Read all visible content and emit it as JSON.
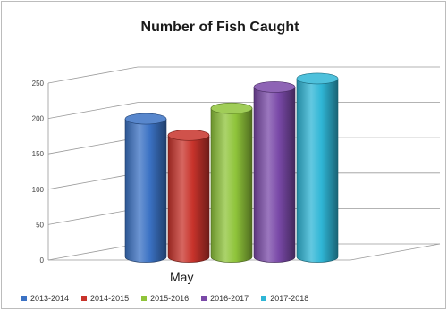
{
  "chart_data": {
    "type": "bar",
    "title": "Number of Fish Caught",
    "xlabel": "",
    "ylabel": "",
    "categories": [
      "May"
    ],
    "ylim": [
      0,
      250
    ],
    "yticks": [
      0,
      50,
      100,
      150,
      200,
      250
    ],
    "grid": true,
    "legend_position": "bottom",
    "series": [
      {
        "name": "2013-2014",
        "values": [
          195
        ],
        "color": "#3b72c4"
      },
      {
        "name": "2014-2015",
        "values": [
          172
        ],
        "color": "#c8332b"
      },
      {
        "name": "2015-2016",
        "values": [
          210
        ],
        "color": "#8fc43a"
      },
      {
        "name": "2016-2017",
        "values": [
          240
        ],
        "color": "#7a49a8"
      },
      {
        "name": "2017-2018",
        "values": [
          252
        ],
        "color": "#2fb6d6"
      }
    ]
  }
}
